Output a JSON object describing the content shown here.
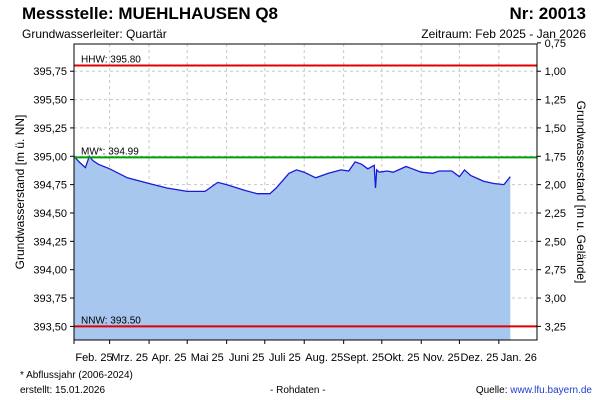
{
  "header": {
    "title": "Messstelle: MUEHLHAUSEN Q8",
    "number": "Nr: 20013",
    "aquifer": "Grundwasserleiter: Quartär",
    "period": "Zeitraum: Feb 2025 - Jan 2026"
  },
  "footer": {
    "note": "* Abflussjahr (2006-2024)",
    "created": "erstellt:  15.01.2026",
    "raw": "- Rohdaten -",
    "source_label": "Quelle:",
    "source_url": "www.lfu.bayern.de"
  },
  "colors": {
    "fill": "#a7c7ee",
    "line": "#1a1ad6",
    "hhw": "#e00000",
    "mw": "#00a000",
    "nnw": "#e00000",
    "grid": "#c8c8c8"
  },
  "chart_data": {
    "type": "area",
    "ylabel_left": "Grundwasserstand [m ü. NN]",
    "ylabel_right": "Grundwasserstand [m u. Gelände]",
    "ylim": [
      393.38,
      395.99
    ],
    "yticks_left": [
      "395,75",
      "395,50",
      "395,25",
      "395,00",
      "394,75",
      "394,50",
      "394,25",
      "394,00",
      "393,75",
      "393,50"
    ],
    "yticks_right": [
      "0,75",
      "1,00",
      "1,25",
      "1,50",
      "1,75",
      "2,00",
      "2,25",
      "2,50",
      "2,75",
      "3,00",
      "3,25"
    ],
    "xticks": [
      "Feb. 25",
      "Mrz. 25",
      "Apr. 25",
      "Mai 25",
      "Juni 25",
      "Juli 25",
      "Aug. 25",
      "Sept. 25",
      "Okt. 25",
      "Nov. 25",
      "Dez. 25",
      "Jan. 26"
    ],
    "reference_lines": [
      {
        "label": "HHW: 395.80",
        "value": 395.8
      },
      {
        "label": "MW*: 394.99",
        "value": 394.99
      },
      {
        "label": "NNW: 393.50",
        "value": 393.5
      }
    ],
    "series": [
      {
        "x": [
          "2025-02-01",
          "2025-02-05",
          "2025-02-10",
          "2025-02-13",
          "2025-02-16",
          "2025-02-20",
          "2025-03-01",
          "2025-03-15",
          "2025-04-01",
          "2025-04-15",
          "2025-05-01",
          "2025-05-15",
          "2025-05-25",
          "2025-06-01",
          "2025-06-15",
          "2025-06-25",
          "2025-07-05",
          "2025-07-10",
          "2025-07-20",
          "2025-07-26",
          "2025-08-01",
          "2025-08-10",
          "2025-08-20",
          "2025-08-30",
          "2025-09-05",
          "2025-09-10",
          "2025-09-15",
          "2025-09-20",
          "2025-09-25",
          "2025-09-26",
          "2025-09-27",
          "2025-09-29",
          "2025-10-05",
          "2025-10-10",
          "2025-10-20",
          "2025-10-25",
          "2025-11-01",
          "2025-11-10",
          "2025-11-15",
          "2025-11-25",
          "2025-12-01",
          "2025-12-05",
          "2025-12-10",
          "2025-12-20",
          "2025-12-28",
          "2026-01-05",
          "2026-01-10"
        ],
        "values": [
          395.0,
          394.95,
          394.9,
          395.0,
          394.96,
          394.93,
          394.89,
          394.81,
          394.76,
          394.72,
          394.69,
          394.69,
          394.77,
          394.75,
          394.7,
          394.67,
          394.67,
          394.72,
          394.85,
          394.88,
          394.86,
          394.81,
          394.85,
          394.88,
          394.87,
          394.95,
          394.93,
          394.89,
          394.92,
          394.72,
          394.88,
          394.86,
          394.87,
          394.86,
          394.91,
          394.89,
          394.86,
          394.85,
          394.87,
          394.87,
          394.82,
          394.88,
          394.83,
          394.78,
          394.76,
          394.75,
          394.82
        ]
      }
    ]
  }
}
